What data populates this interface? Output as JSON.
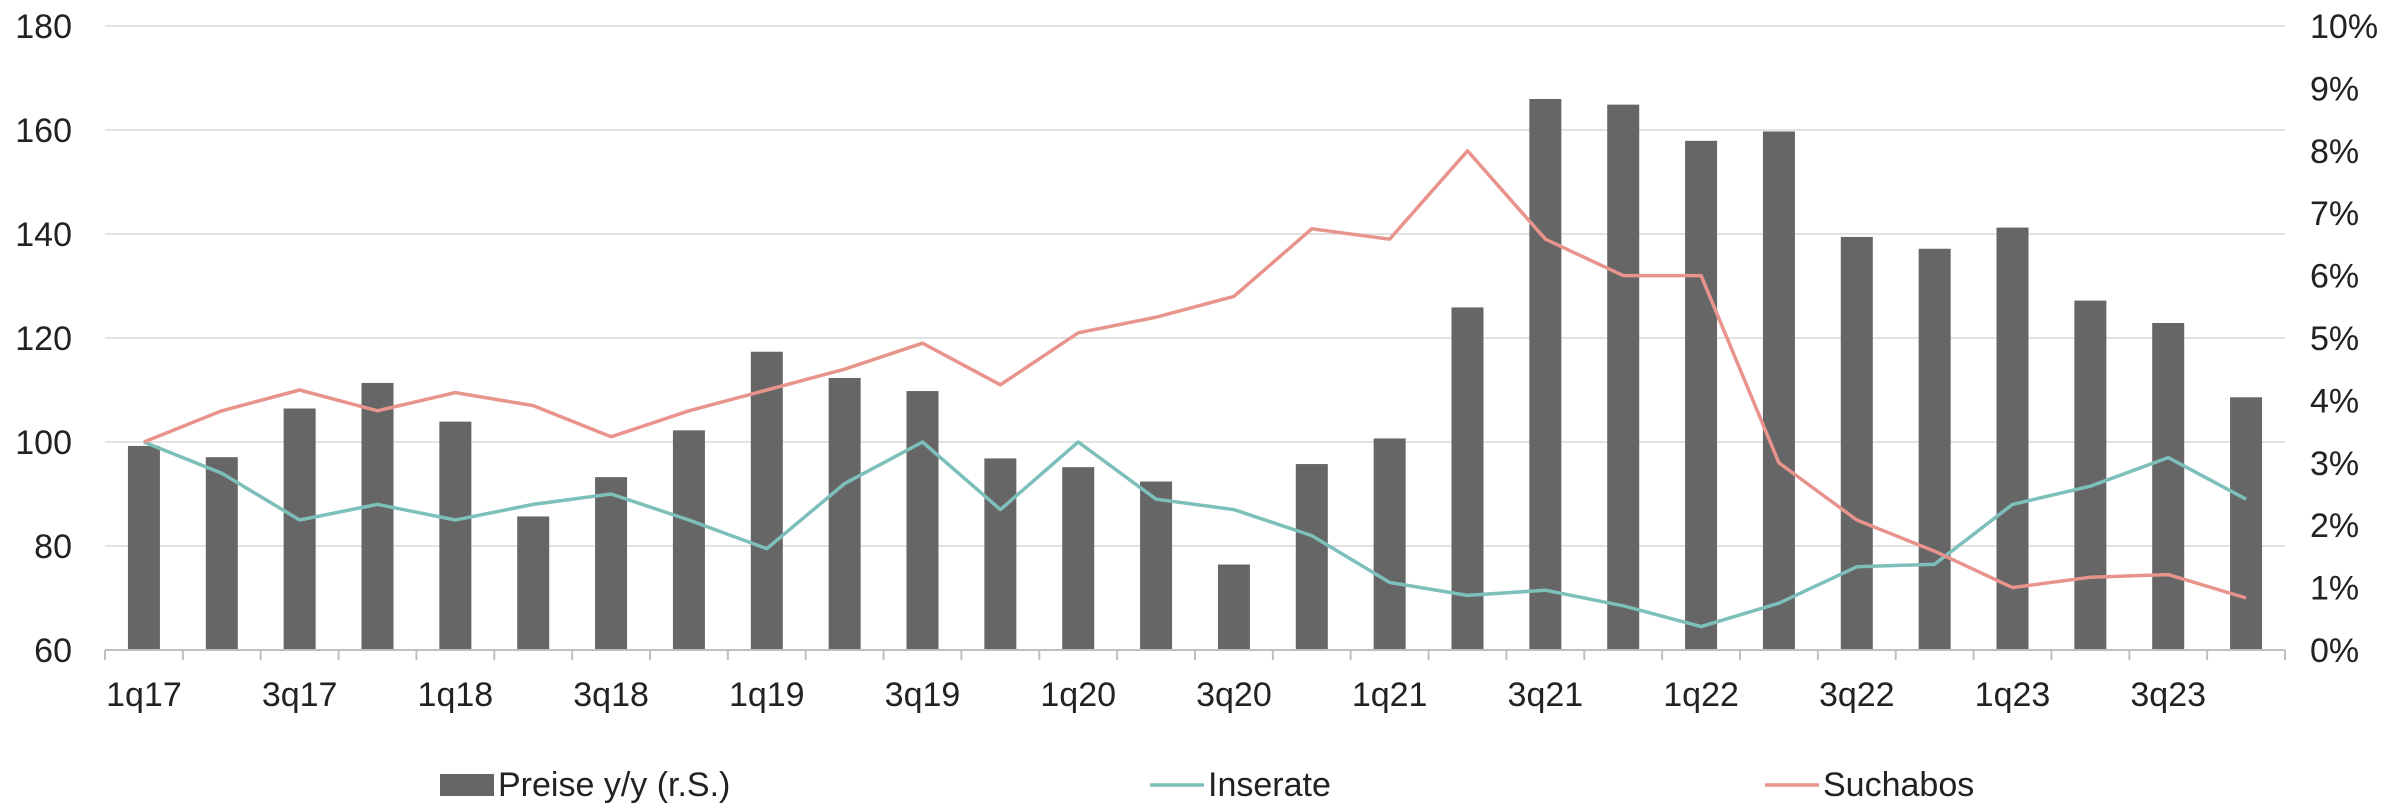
{
  "chart_data": {
    "type": "bar+line",
    "categories": [
      "1q17",
      "2q17",
      "3q17",
      "4q17",
      "1q18",
      "2q18",
      "3q18",
      "4q18",
      "1q19",
      "2q19",
      "3q19",
      "4q19",
      "1q20",
      "2q20",
      "3q20",
      "4q20",
      "1q21",
      "2q21",
      "3q21",
      "4q21",
      "1q22",
      "2q22",
      "3q22",
      "4q22",
      "1q23",
      "2q23",
      "3q23",
      "4q23"
    ],
    "x_tick_labels": [
      "1q17",
      "3q17",
      "1q18",
      "3q18",
      "1q19",
      "3q19",
      "1q20",
      "3q20",
      "1q21",
      "3q21",
      "1q22",
      "3q22",
      "1q23",
      "3q23"
    ],
    "y_left": {
      "min": 60,
      "max": 180,
      "ticks": [
        "60",
        "80",
        "100",
        "120",
        "140",
        "160",
        "180"
      ]
    },
    "y_right": {
      "min": 0,
      "max": 10,
      "ticks": [
        "0%",
        "1%",
        "2%",
        "3%",
        "4%",
        "5%",
        "6%",
        "7%",
        "8%",
        "9%",
        "10%"
      ]
    },
    "grid": true,
    "legend_position": "bottom",
    "series": [
      {
        "name": "Preise y/y (r.S.)",
        "type": "bar",
        "axis": "right",
        "color": "#666666",
        "values": [
          3.27,
          3.09,
          3.87,
          4.28,
          3.66,
          2.14,
          2.77,
          3.52,
          4.78,
          4.36,
          4.15,
          3.07,
          2.93,
          2.7,
          1.37,
          2.98,
          3.39,
          5.49,
          8.83,
          8.74,
          8.16,
          8.31,
          6.62,
          6.43,
          6.77,
          5.6,
          5.24,
          4.05
        ]
      },
      {
        "name": "Inserate",
        "type": "line",
        "axis": "left",
        "color": "#7dbfba",
        "values": [
          100,
          94,
          85,
          88,
          85,
          88,
          90,
          85,
          79.5,
          92,
          100,
          87,
          100,
          89,
          87,
          82,
          73,
          70.5,
          71.5,
          68.5,
          64.5,
          69,
          76,
          76.5,
          88,
          91.5,
          97,
          89
        ]
      },
      {
        "name": "Suchabos",
        "type": "line",
        "axis": "left",
        "color": "#e8938c",
        "values": [
          100,
          106,
          110,
          106,
          109.5,
          107,
          101,
          106,
          110,
          114,
          119,
          111,
          121,
          124,
          128,
          141,
          139,
          156,
          139,
          132,
          132,
          96,
          85,
          79,
          72,
          74,
          74.5,
          70
        ]
      }
    ]
  },
  "colors": {
    "grid": "#d9d9d9",
    "axis": "#bfbfbf",
    "text": "#222222"
  }
}
